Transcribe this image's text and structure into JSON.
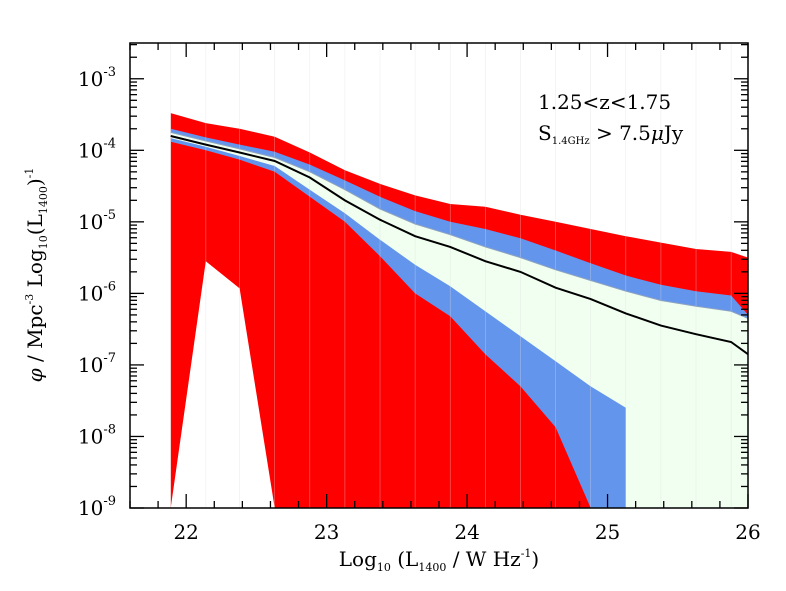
{
  "chart_data": {
    "type": "area",
    "xlabel": {
      "prefix": "Log",
      "prefix_sub": "10",
      "open": " (L",
      "l_sub": "1400",
      "mid": " / W Hz",
      "exp": "-1",
      "close": ")"
    },
    "ylabel": {
      "phi": "φ",
      "a": " / Mpc",
      "a_exp": "-3",
      "b": " Log",
      "b_sub": "10",
      "c": "(L",
      "c_sub": "1400",
      "d": ")",
      "d_exp": "-1"
    },
    "annotations": {
      "redshift": "1.25<z<1.75",
      "flux_S": "S",
      "flux_sub": "1.4GHz",
      "flux_rest": " > 7.5",
      "flux_mu": "μ",
      "flux_unit": "Jy"
    },
    "xlim": [
      21.6,
      26.0
    ],
    "ylim_log10": [
      -9,
      -2.5
    ],
    "yscale": "log",
    "x_ticks": [
      "22",
      "23",
      "24",
      "25",
      "26"
    ],
    "x_tick_values": [
      22,
      23,
      24,
      25,
      26
    ],
    "y_ticks": [
      {
        "base": "10",
        "exp": "-3"
      },
      {
        "base": "10",
        "exp": "-4"
      },
      {
        "base": "10",
        "exp": "-5"
      },
      {
        "base": "10",
        "exp": "-6"
      },
      {
        "base": "10",
        "exp": "-7"
      },
      {
        "base": "10",
        "exp": "-8"
      },
      {
        "base": "10",
        "exp": "-9"
      }
    ],
    "y_tick_log10": [
      -3,
      -4,
      -5,
      -6,
      -7,
      -8,
      -9
    ],
    "colors": {
      "outer_band": "#ff0000",
      "middle_band": "#6495ed",
      "inner_band": "#f0fff0",
      "inner_edge": "#8fa3bf",
      "median": "#000000",
      "grid_lines": "#dcdcdc"
    },
    "bin_edges": [
      21.89,
      22.14,
      22.38,
      22.63,
      22.88,
      23.13,
      23.38,
      23.63,
      23.88,
      24.13,
      24.38,
      24.63,
      24.88,
      25.13,
      25.38,
      25.63,
      25.88
    ],
    "bands": {
      "outer": {
        "x_upper": [
          21.89,
          22.14,
          22.38,
          22.63,
          22.88,
          23.13,
          23.38,
          23.63,
          23.88,
          24.13,
          24.38,
          24.63,
          24.88,
          25.13,
          25.38,
          25.63,
          25.88,
          26.0
        ],
        "upper_log10": [
          -3.48,
          -3.62,
          -3.7,
          -3.81,
          -4.03,
          -4.28,
          -4.47,
          -4.63,
          -4.75,
          -4.79,
          -4.9,
          -5.0,
          -5.1,
          -5.2,
          -5.29,
          -5.38,
          -5.42,
          -5.5
        ],
        "x_lower": [
          21.89,
          22.14,
          22.38,
          22.63,
          23.88,
          24.13
        ],
        "lower_log10": [
          -4.12,
          -4.46,
          -4.6,
          -4.75,
          -8.03,
          -9.0
        ],
        "x_lower_drop": [
          21.89,
          22.14,
          22.38,
          22.63
        ],
        "lower_drop_log10": [
          -9.0,
          -5.55,
          -5.93,
          -9.0
        ]
      },
      "middle": {
        "x_upper": [
          21.89,
          22.14,
          22.38,
          22.63,
          22.88,
          23.13,
          23.38,
          23.63,
          23.88,
          24.13,
          24.38,
          24.63,
          24.88,
          25.13,
          25.38,
          25.63,
          25.88,
          26.0
        ],
        "upper_log10": [
          -3.7,
          -3.82,
          -3.92,
          -4.02,
          -4.2,
          -4.42,
          -4.65,
          -4.85,
          -5.0,
          -5.1,
          -5.23,
          -5.4,
          -5.58,
          -5.75,
          -5.88,
          -5.97,
          -6.03,
          -6.3
        ],
        "x_lower": [
          21.89,
          22.14,
          22.38,
          22.63,
          22.88,
          23.13,
          23.38,
          23.63,
          23.88,
          24.13,
          24.38,
          24.63,
          24.88,
          25.13
        ],
        "lower_log10": [
          -3.88,
          -4.0,
          -4.13,
          -4.3,
          -4.65,
          -5.0,
          -5.48,
          -6.0,
          -6.32,
          -6.85,
          -7.3,
          -7.87,
          -9.0,
          -9.0
        ]
      },
      "inner": {
        "x_upper": [
          21.89,
          22.14,
          22.38,
          22.63,
          22.88,
          23.13,
          23.38,
          23.63,
          23.88,
          24.13,
          24.38,
          24.63,
          24.88,
          25.13,
          25.38,
          25.63,
          25.88,
          26.0
        ],
        "upper_log10": [
          -3.75,
          -3.87,
          -3.98,
          -4.1,
          -4.3,
          -4.55,
          -4.82,
          -5.03,
          -5.18,
          -5.35,
          -5.5,
          -5.67,
          -5.82,
          -5.97,
          -6.1,
          -6.18,
          -6.25,
          -6.35
        ],
        "x_lower": [
          21.89,
          22.14,
          22.38,
          22.63,
          22.88,
          23.13,
          23.38,
          23.63,
          23.88,
          24.13,
          24.38,
          24.63,
          24.88,
          25.13,
          25.38,
          25.63,
          25.88,
          26.0
        ],
        "lower_log10": [
          -3.83,
          -3.95,
          -4.08,
          -4.22,
          -4.55,
          -4.88,
          -5.25,
          -5.6,
          -5.9,
          -6.25,
          -6.6,
          -6.95,
          -7.3,
          -7.6,
          -7.9,
          -8.2,
          -8.5,
          -8.8
        ]
      }
    },
    "median": {
      "x": [
        21.89,
        22.14,
        22.38,
        22.63,
        22.88,
        23.13,
        23.38,
        23.63,
        23.88,
        24.13,
        24.38,
        24.63,
        24.88,
        25.13,
        25.38,
        25.63,
        25.88,
        26.0
      ],
      "y_log10": [
        -3.8,
        -3.92,
        -4.03,
        -4.15,
        -4.38,
        -4.7,
        -4.97,
        -5.2,
        -5.35,
        -5.55,
        -5.7,
        -5.92,
        -6.08,
        -6.28,
        -6.45,
        -6.57,
        -6.68,
        -6.85
      ]
    }
  }
}
